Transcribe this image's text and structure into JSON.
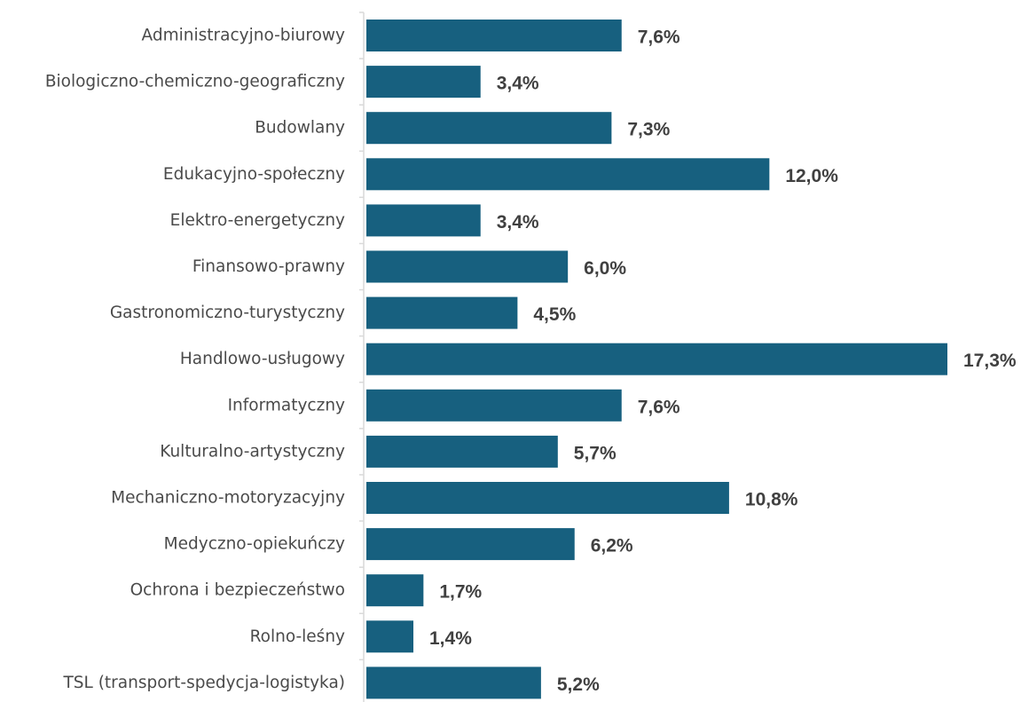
{
  "colors": {
    "bar": "#17607f",
    "axis": "#d9d9d9",
    "category_text": "#4a4a4a",
    "value_text": "#404040",
    "background": "#ffffff"
  },
  "chart_data": {
    "type": "bar",
    "orientation": "horizontal",
    "title": "",
    "xlabel": "",
    "ylabel": "",
    "grid": false,
    "legend": "none",
    "xlim": [
      0,
      17.3
    ],
    "categories": [
      "Administracyjno-biurowy",
      "Biologiczno-chemiczno-geograficzny",
      "Budowlany",
      "Edukacyjno-społeczny",
      "Elektro-energetyczny",
      "Finansowo-prawny",
      "Gastronomiczno-turystyczny",
      "Handlowo-usługowy",
      "Informatyczny",
      "Kulturalno-artystyczny",
      "Mechaniczno-motoryzacyjny",
      "Medyczno-opiekuńczy",
      "Ochrona i bezpieczeństwo",
      "Rolno-leśny",
      "TSL (transport-spedycja-logistyka)"
    ],
    "values": [
      7.6,
      3.4,
      7.3,
      12.0,
      3.4,
      6.0,
      4.5,
      17.3,
      7.6,
      5.7,
      10.8,
      6.2,
      1.7,
      1.4,
      5.2
    ],
    "value_labels": [
      "7,6%",
      "3,4%",
      "7,3%",
      "12,0%",
      "3,4%",
      "6,0%",
      "4,5%",
      "17,3%",
      "7,6%",
      "5,7%",
      "10,8%",
      "6,2%",
      "1,7%",
      "1,4%",
      "5,2%"
    ]
  }
}
